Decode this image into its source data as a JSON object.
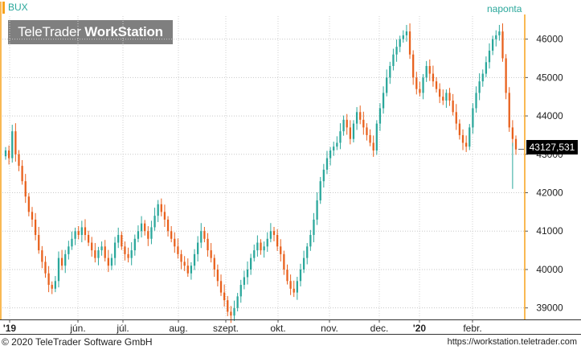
{
  "header": {
    "symbol": "BUX",
    "interval": "naponta"
  },
  "logo": {
    "part1": "TeleTrader ",
    "part2": "WorkStation"
  },
  "footer": {
    "copyright": "© 2020 TeleTrader Software GmbH",
    "url": "https://workstation.teletrader.com"
  },
  "last_value_label": "43127,531",
  "colors": {
    "up": "#2aa79b",
    "down": "#e8601c",
    "accent": "#f7a21b",
    "last_box": "#000000"
  },
  "chart_data": {
    "type": "candlestick",
    "title": "",
    "ylim": [
      38700,
      46600
    ],
    "y_ticks": [
      "39000",
      "40000",
      "41000",
      "42000",
      "43000",
      "44000",
      "45000",
      "46000"
    ],
    "x_ticks": [
      "'19",
      "jún.",
      "júl.",
      "aug.",
      "szept.",
      "okt.",
      "nov.",
      "dec.",
      "'20",
      "febr."
    ],
    "grid": true,
    "close_series": [
      43100,
      42900,
      43600,
      43000,
      42700,
      42300,
      41900,
      41500,
      41300,
      40900,
      40500,
      40200,
      39900,
      39600,
      39500,
      39700,
      40300,
      40100,
      40400,
      40600,
      40800,
      41000,
      40900,
      41100,
      40900,
      40700,
      40500,
      40300,
      40500,
      40600,
      40300,
      40100,
      40300,
      40700,
      40900,
      40600,
      40400,
      40300,
      40500,
      40800,
      41000,
      41200,
      41000,
      40800,
      41100,
      41400,
      41700,
      41500,
      41300,
      41000,
      40800,
      40600,
      40400,
      40200,
      40100,
      39900,
      40100,
      40400,
      40700,
      41000,
      40800,
      40500,
      40300,
      40000,
      39700,
      39400,
      39200,
      38900,
      38800,
      39000,
      39300,
      39600,
      39800,
      40000,
      40300,
      40500,
      40700,
      40500,
      40600,
      40800,
      41000,
      40900,
      40600,
      40400,
      40000,
      39700,
      39500,
      39400,
      39700,
      40000,
      40300,
      40600,
      40900,
      41300,
      41800,
      42300,
      42600,
      42900,
      43100,
      43200,
      43300,
      43600,
      43900,
      43700,
      43400,
      43800,
      44100,
      43900,
      43700,
      43500,
      43300,
      43100,
      43800,
      44200,
      44600,
      45000,
      45300,
      45600,
      45800,
      46000,
      46100,
      46200,
      45600,
      45000,
      44700,
      44600,
      45000,
      45300,
      45100,
      44900,
      44700,
      44500,
      44400,
      44600,
      44400,
      44100,
      43800,
      43500,
      43300,
      43200,
      43700,
      44200,
      44600,
      44900,
      45100,
      45400,
      45700,
      46000,
      46100,
      46200,
      45500,
      44600,
      43700,
      43400,
      43127.531
    ],
    "last_close": "43127,531",
    "day_low_marker": 42100
  }
}
